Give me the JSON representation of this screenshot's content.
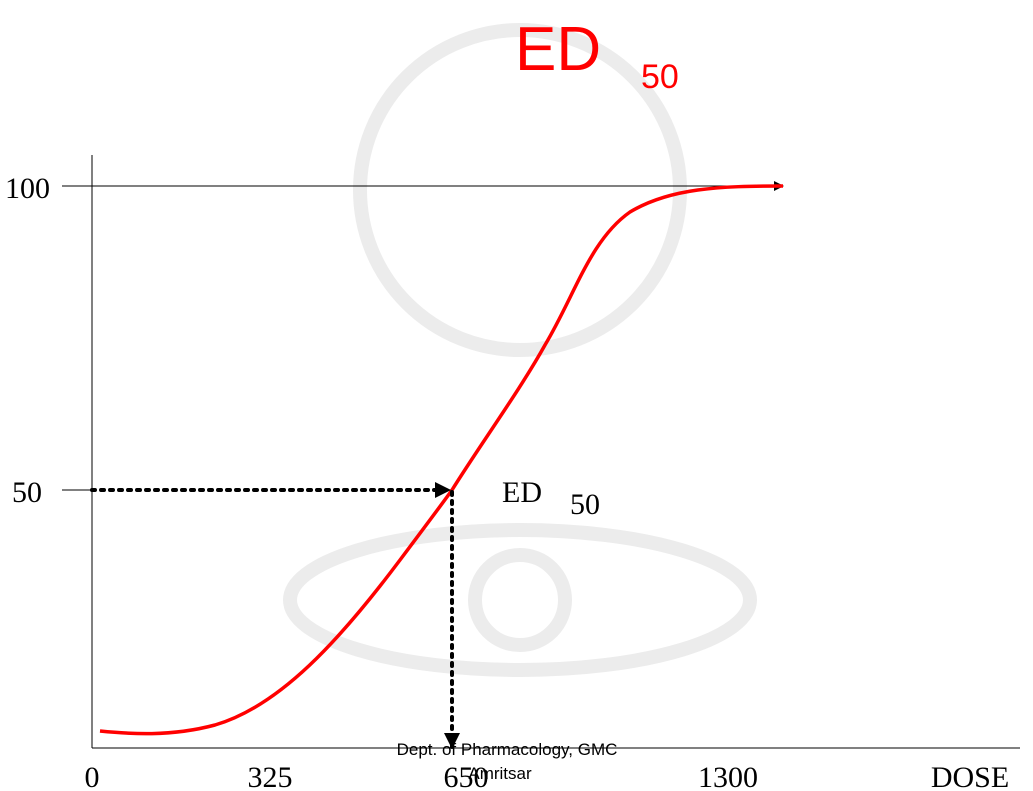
{
  "title": {
    "main": "ED",
    "subscript": "50"
  },
  "y_labels": [
    "100",
    "50"
  ],
  "x_labels": [
    "0",
    "325",
    "650",
    "1300",
    "DOSE"
  ],
  "annotation": {
    "main": "ED",
    "subscript": "50"
  },
  "footer": [
    "Dept. of Pharmacology, GMC",
    "Amritsar"
  ]
}
